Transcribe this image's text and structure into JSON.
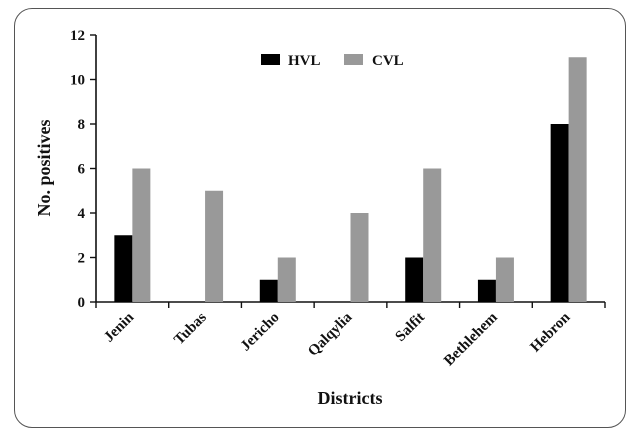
{
  "chart_data": {
    "type": "bar",
    "title": "",
    "xlabel": "Districts",
    "ylabel": "No. positives",
    "ylim": [
      0,
      12
    ],
    "yticks": [
      0,
      2,
      4,
      6,
      8,
      10,
      12
    ],
    "categories": [
      "Jenin",
      "Tubas",
      "Jericho",
      "Qalqylia",
      "Salfit",
      "Bethlehem",
      "Hebron"
    ],
    "series": [
      {
        "name": "HVL",
        "color": "#000000",
        "values": [
          3,
          0,
          1,
          0,
          2,
          1,
          8
        ]
      },
      {
        "name": "CVL",
        "color": "#999999",
        "values": [
          6,
          5,
          2,
          4,
          6,
          2,
          11
        ]
      }
    ],
    "legend": "top-center",
    "grid": false
  }
}
